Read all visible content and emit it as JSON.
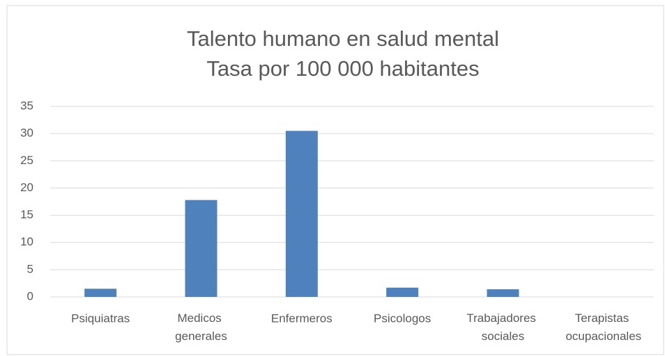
{
  "chart_data": {
    "type": "bar",
    "title": "Talento humano en salud mental",
    "subtitle": "Tasa  por 100 000 habitantes",
    "categories": [
      "Psiquiatras",
      "Medicos generales",
      "Enfermeros",
      "Psicologos",
      "Trabajadores sociales",
      "Terapistas ocupacionales"
    ],
    "values": [
      1.5,
      17.8,
      30.5,
      1.7,
      1.4,
      0
    ],
    "color": "#4f81bd",
    "ylim": [
      0,
      35
    ],
    "yticks": [
      0,
      5,
      10,
      15,
      20,
      25,
      30,
      35
    ],
    "grid": true
  }
}
